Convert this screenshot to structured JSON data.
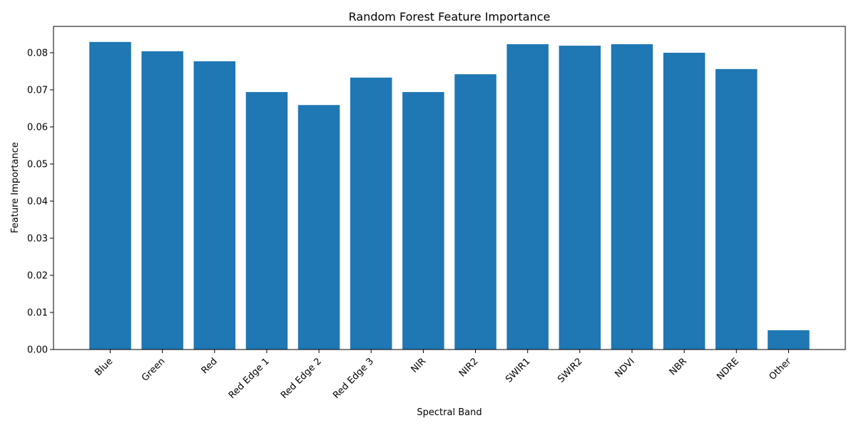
{
  "chart_data": {
    "type": "bar",
    "title": "Random Forest Feature Importance",
    "xlabel": "Spectral Band",
    "ylabel": "Feature Importance",
    "categories": [
      "Blue",
      "Green",
      "Red",
      "Red Edge 1",
      "Red Edge 2",
      "Red Edge 3",
      "NIR",
      "NIR2",
      "SWIR1",
      "SWIR2",
      "NDVI",
      "NBR",
      "NDRE",
      "Other"
    ],
    "values": [
      0.0829,
      0.0804,
      0.0777,
      0.0694,
      0.0659,
      0.0733,
      0.0694,
      0.0742,
      0.0823,
      0.0819,
      0.0823,
      0.08,
      0.0756,
      0.0052
    ],
    "ylim": [
      0,
      0.0871
    ],
    "yticks": [
      "0.00",
      "0.01",
      "0.02",
      "0.03",
      "0.04",
      "0.05",
      "0.06",
      "0.07",
      "0.08"
    ],
    "bar_color": "#1f77b4",
    "grid": false,
    "legend": "none"
  }
}
